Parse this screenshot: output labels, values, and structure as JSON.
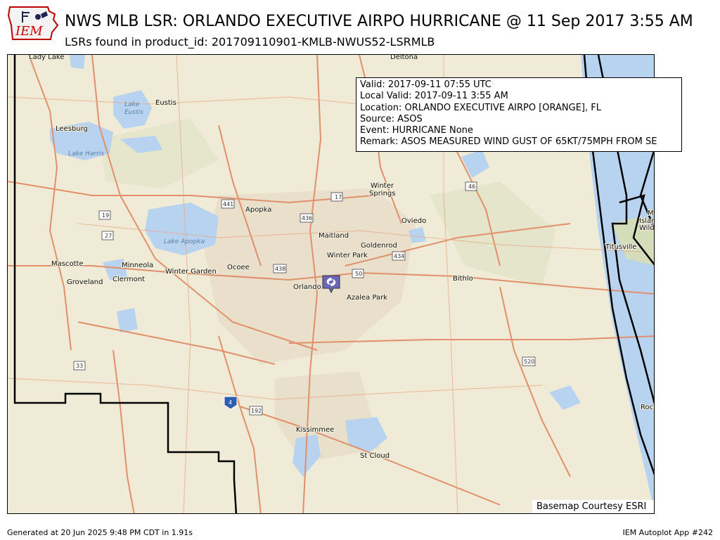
{
  "header": {
    "logo_text": "IEM",
    "title": "NWS MLB LSR: ORLANDO EXECUTIVE AIRPO HURRICANE @ 11 Sep 2017 3:55 AM",
    "subtitle": "LSRs found in product_id: 201709110901-KMLB-NWUS52-LSRMLB"
  },
  "popup": {
    "valid": "Valid: 2017-09-11 07:55 UTC",
    "local_valid": "Local Valid: 2017-09-11 3:55 AM",
    "location": "Location: ORLANDO EXECUTIVE AIRPO [ORANGE], FL",
    "source": "Source: ASOS",
    "event": "Event: HURRICANE  None",
    "remark": "Remark: ASOS MEASURED WIND GUST OF 65KT/75MPH FROM SE"
  },
  "map": {
    "basemap_credit": "Basemap Courtesy ESRI",
    "marker_icon": "hurricane-icon",
    "cities": [
      "Lady Lake",
      "Deltona",
      "Eustis",
      "Leesburg",
      "Winter Springs",
      "Apopka",
      "Oviedo",
      "Maitland",
      "Goldenrod",
      "Winter Park",
      "Mascotte",
      "Minneola",
      "Winter Garden",
      "Ocoee",
      "Groveland",
      "Clermont",
      "Orlando",
      "Bithlo",
      "Azalea Park",
      "Titusville",
      "Kissimmee",
      "St Cloud",
      "Roc",
      "Me",
      "Islan",
      "Wild"
    ],
    "lakes": [
      "Lake Eustis",
      "Lake Harris",
      "Lake Apopka"
    ],
    "route_shields": [
      "441",
      "17",
      "436",
      "19",
      "27",
      "46",
      "434",
      "438",
      "50",
      "520",
      "33",
      "4",
      "192"
    ],
    "colors": {
      "land": "#efebd6",
      "water": "#b7d3ef",
      "roads": "#e0906a",
      "boundaries": "#000000"
    }
  },
  "footer": {
    "generated": "Generated at 20 Jun 2025 9:48 PM CDT in 1.91s",
    "app": "IEM Autoplot App #242"
  }
}
